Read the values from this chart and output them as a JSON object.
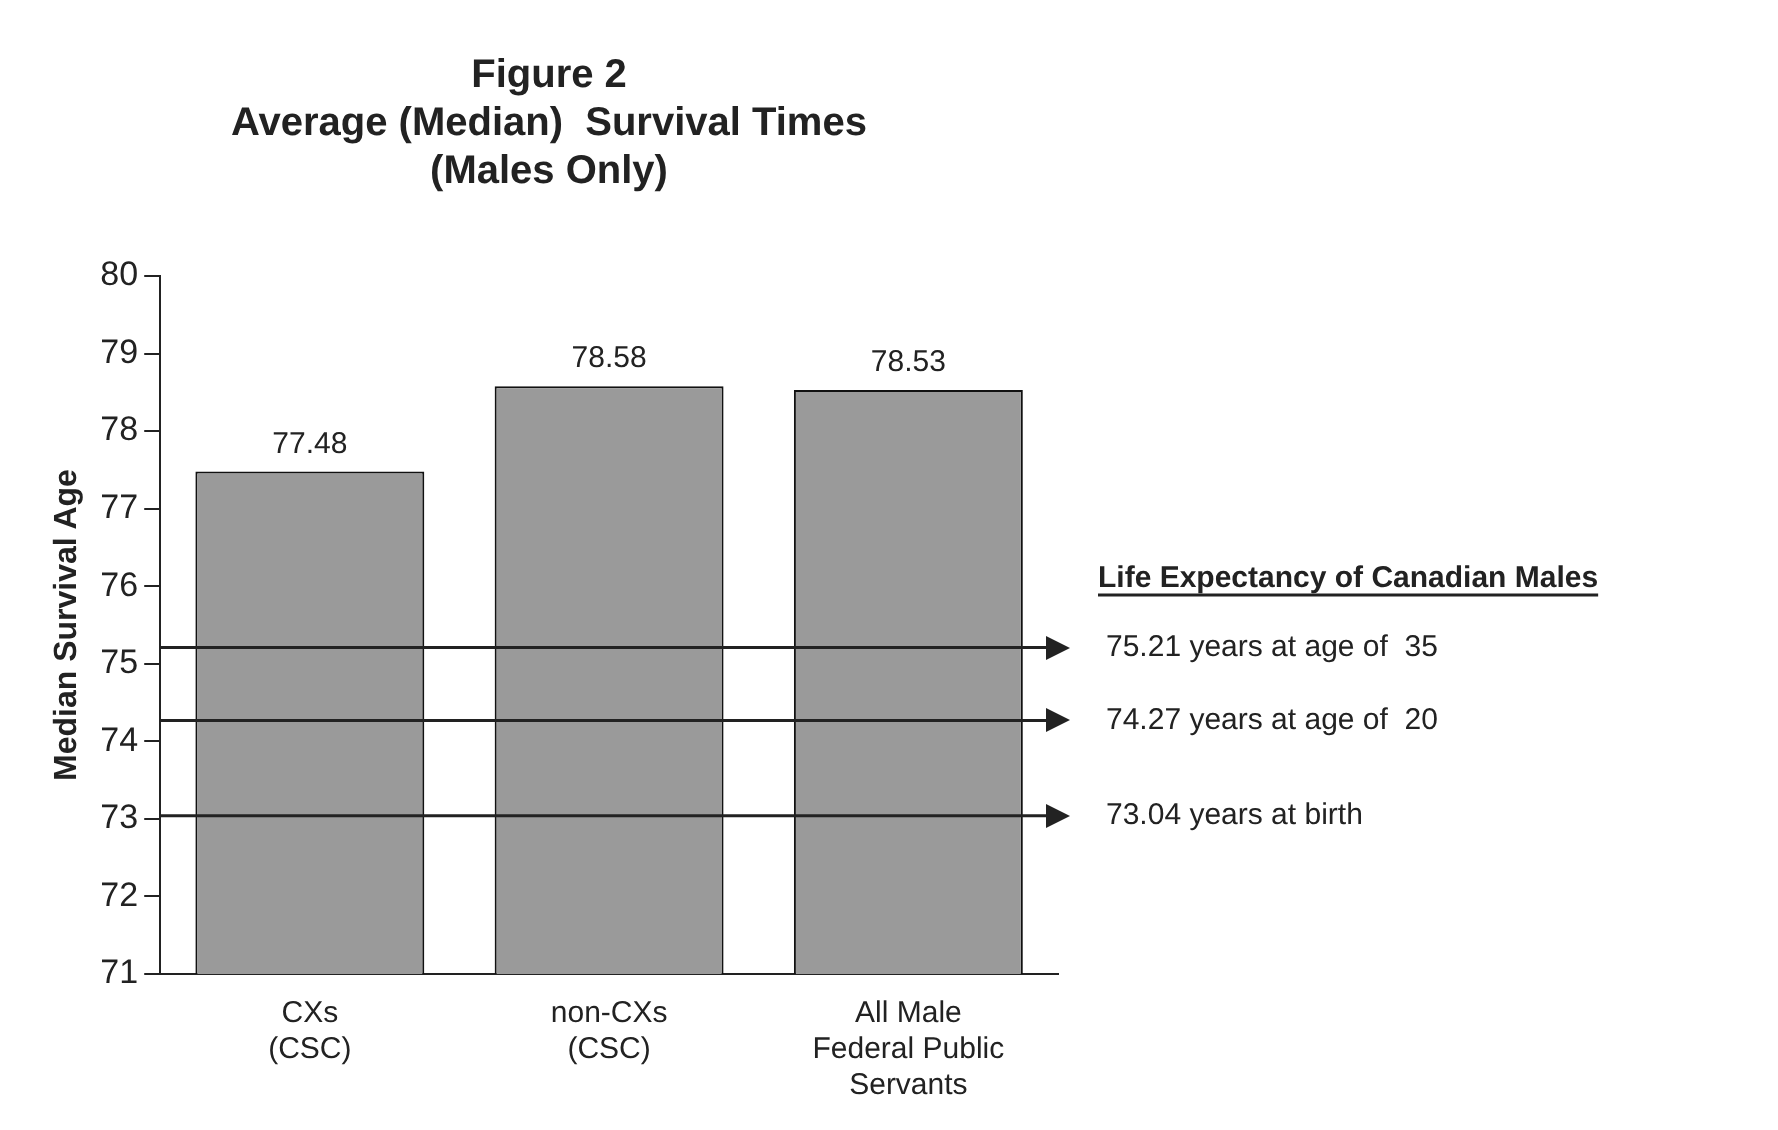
{
  "chart_data": {
    "type": "bar",
    "title": "Figure 2\nAverage (Median)  Survival Times\n(Males Only)",
    "ylabel": "Median Survival Age",
    "categories": [
      "CXs\n(CSC)",
      "non-CXs\n(CSC)",
      "All Male\nFederal Public\nServants"
    ],
    "values": [
      77.48,
      78.58,
      78.53
    ],
    "color": "#9a9a9a",
    "ylim": [
      71,
      80
    ],
    "yticks": [
      71,
      72,
      73,
      74,
      75,
      76,
      77,
      78,
      79,
      80
    ],
    "data_labels": true,
    "annotations": [
      "Life Expectancy of Canadian Males"
    ],
    "ref_lines": [
      {
        "axis": "y",
        "value": 75.21,
        "label": "75.21 years at age of  35",
        "color": "#222222"
      },
      {
        "axis": "y",
        "value": 74.27,
        "label": "74.27 years at age of  20",
        "color": "#222222"
      },
      {
        "axis": "y",
        "value": 73.04,
        "label": "73.04 years at birth",
        "color": "#222222"
      }
    ]
  }
}
